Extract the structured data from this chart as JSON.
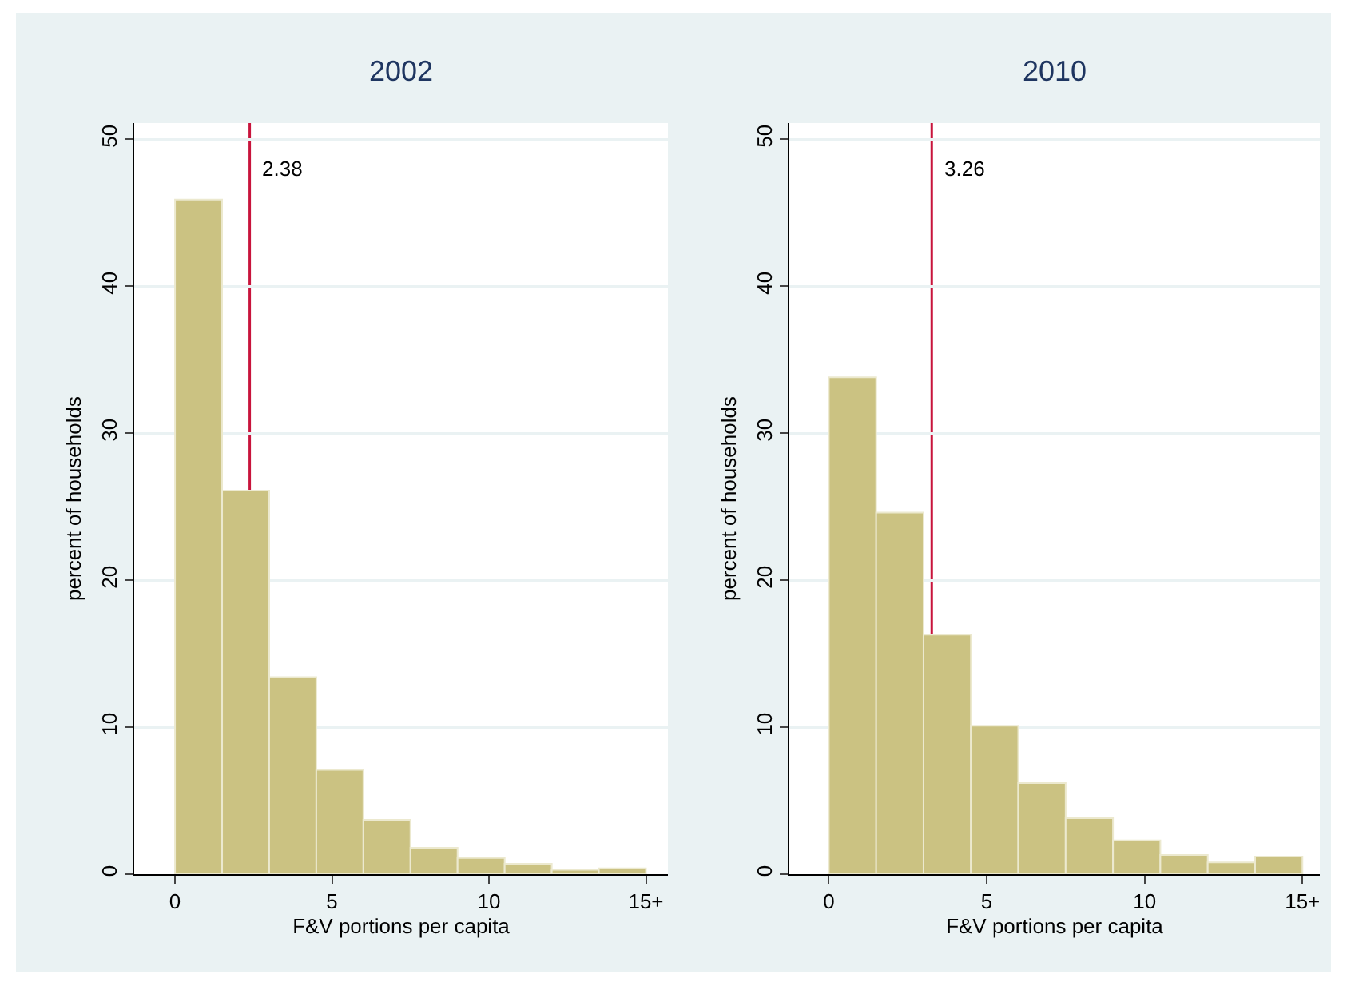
{
  "chart_data": [
    {
      "type": "histogram",
      "title": "2002",
      "xlabel": "F&V portions per capita",
      "ylabel": "percent of households",
      "bins": [
        0,
        1.5,
        3,
        4.5,
        6,
        7.5,
        9,
        10.5,
        12,
        13.5,
        15
      ],
      "values": [
        45.9,
        26.1,
        13.4,
        7.1,
        3.7,
        1.8,
        1.1,
        0.7,
        0.3,
        0.4
      ],
      "color": "#cbc282",
      "xlim": [
        -1.3,
        15.7
      ],
      "ylim": [
        0,
        51.1
      ],
      "xticks": [
        0,
        5,
        10,
        {
          "value": 15,
          "label": "15+"
        }
      ],
      "yticks": [
        0,
        10,
        20,
        30,
        40,
        50
      ],
      "grid": "y",
      "ref_lines": [
        {
          "axis": "x",
          "value": 2.38,
          "label": "2.38",
          "color": "#c8143c"
        }
      ]
    },
    {
      "type": "histogram",
      "title": "2010",
      "xlabel": "F&V portions per capita",
      "ylabel": "percent of households",
      "bins": [
        0,
        1.5,
        3,
        4.5,
        6,
        7.5,
        9,
        10.5,
        12,
        13.5,
        15
      ],
      "values": [
        33.8,
        24.6,
        16.3,
        10.1,
        6.2,
        3.8,
        2.3,
        1.3,
        0.8,
        1.2
      ],
      "color": "#cbc282",
      "xlim": [
        -1.25,
        15.55
      ],
      "ylim": [
        0,
        51.1
      ],
      "xticks": [
        0,
        5,
        10,
        {
          "value": 15,
          "label": "15+"
        }
      ],
      "yticks": [
        0,
        10,
        20,
        30,
        40,
        50
      ],
      "grid": "y",
      "ref_lines": [
        {
          "axis": "x",
          "value": 3.26,
          "label": "3.26",
          "color": "#c8143c"
        }
      ]
    }
  ]
}
